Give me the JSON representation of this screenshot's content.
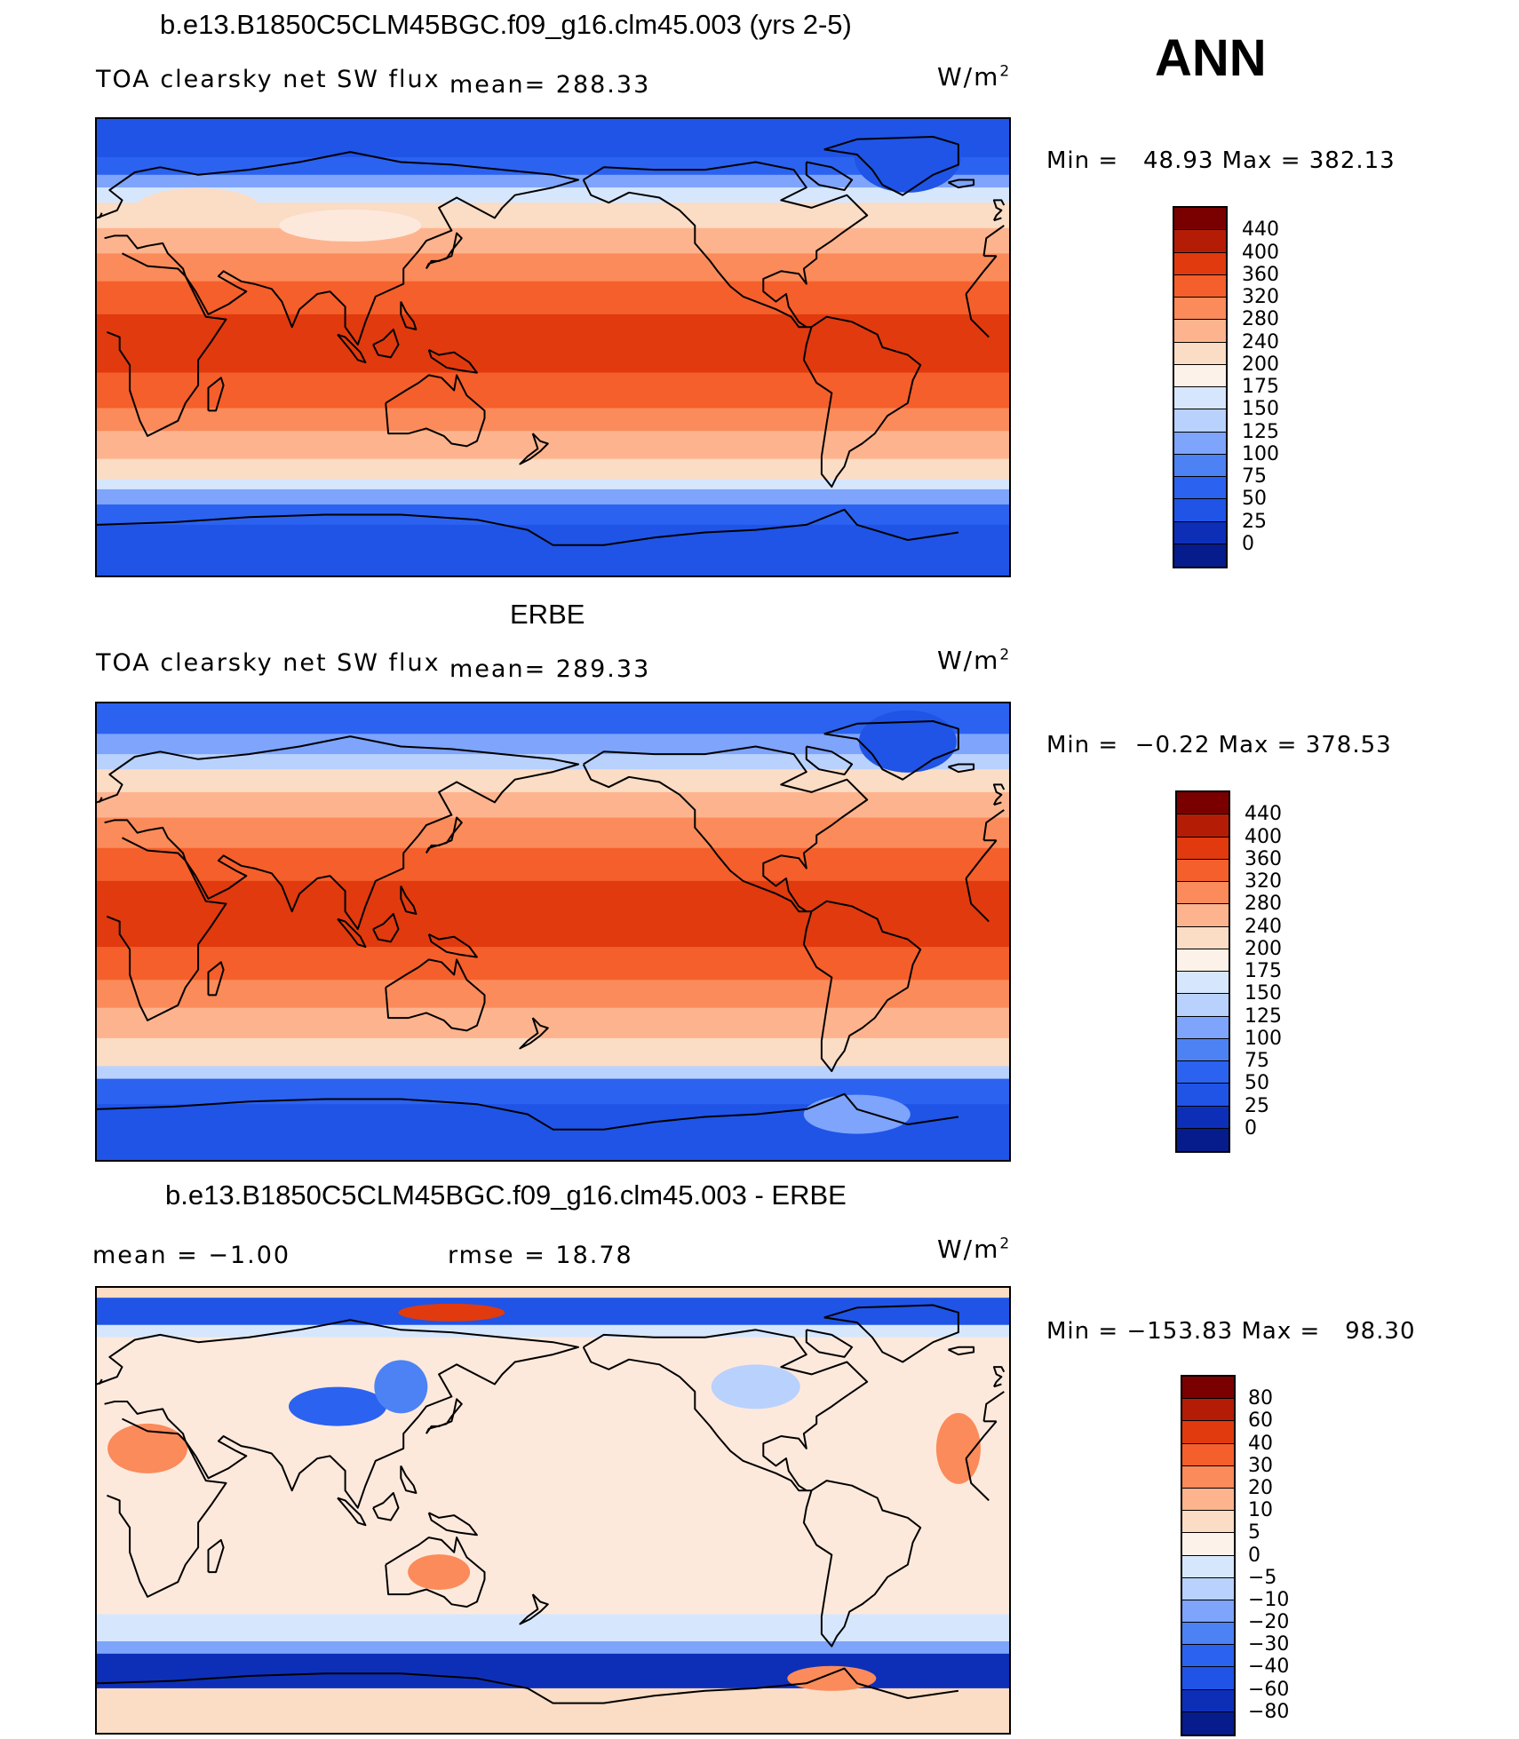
{
  "season": "ANN",
  "panels": [
    {
      "id": "model",
      "title": "b.e13.B1850C5CLM45BGC.f09_g16.clm45.003 (yrs 2-5)",
      "left_label": "TOA clearsky net SW flux",
      "mean_text": "mean= 288.33",
      "units": "W/m",
      "units_sup": "2",
      "minmax": "Min =   48.93 Max = 382.13",
      "cbar_labels": [
        "440",
        "400",
        "360",
        "320",
        "280",
        "240",
        "200",
        "175",
        "150",
        "125",
        "100",
        "75",
        "50",
        "25",
        "0"
      ],
      "bands": [
        {
          "lat": 90,
          "color": "#1f54e6"
        },
        {
          "lat": 75,
          "color": "#2b62f0"
        },
        {
          "lat": 68,
          "color": "#7ea4fb"
        },
        {
          "lat": 63,
          "color": "#d6e7fd"
        },
        {
          "lat": 57,
          "color": "#fbdcc4"
        },
        {
          "lat": 47,
          "color": "#fdb48e"
        },
        {
          "lat": 37,
          "color": "#fb8b5a"
        },
        {
          "lat": 26,
          "color": "#f55f2b"
        },
        {
          "lat": 13,
          "color": "#e13a0e"
        },
        {
          "lat": -10,
          "color": "#f55f2b"
        },
        {
          "lat": -24,
          "color": "#fb8b5a"
        },
        {
          "lat": -33,
          "color": "#fdb48e"
        },
        {
          "lat": -44,
          "color": "#fbdcc4"
        },
        {
          "lat": -52,
          "color": "#d6e7fd"
        },
        {
          "lat": -56,
          "color": "#7ea4fb"
        },
        {
          "lat": -62,
          "color": "#2b62f0"
        },
        {
          "lat": -70,
          "color": "#1f54e6"
        }
      ]
    },
    {
      "id": "obs",
      "title": "ERBE",
      "left_label": "TOA clearsky net SW flux",
      "mean_text": "mean= 289.33",
      "units": "W/m",
      "units_sup": "2",
      "minmax": "Min =  −0.22 Max = 378.53",
      "cbar_labels": [
        "440",
        "400",
        "360",
        "320",
        "280",
        "240",
        "200",
        "175",
        "150",
        "125",
        "100",
        "75",
        "50",
        "25",
        "0"
      ],
      "bands": [
        {
          "lat": 90,
          "color": "#2b62f0"
        },
        {
          "lat": 78,
          "color": "#7ea4fb"
        },
        {
          "lat": 70,
          "color": "#b9d1fd"
        },
        {
          "lat": 64,
          "color": "#fbdcc4"
        },
        {
          "lat": 55,
          "color": "#fdb48e"
        },
        {
          "lat": 45,
          "color": "#fb8b5a"
        },
        {
          "lat": 33,
          "color": "#f55f2b"
        },
        {
          "lat": 20,
          "color": "#e13a0e"
        },
        {
          "lat": -6,
          "color": "#f55f2b"
        },
        {
          "lat": -19,
          "color": "#fb8b5a"
        },
        {
          "lat": -30,
          "color": "#fdb48e"
        },
        {
          "lat": -42,
          "color": "#fbdcc4"
        },
        {
          "lat": -53,
          "color": "#b9d1fd"
        },
        {
          "lat": -58,
          "color": "#2b62f0"
        },
        {
          "lat": -68,
          "color": "#1f54e6"
        }
      ]
    },
    {
      "id": "diff",
      "title": "b.e13.B1850C5CLM45BGC.f09_g16.clm45.003 - ERBE",
      "left_label": "mean =   −1.00",
      "mean_text": "rmse =   18.78",
      "units": "W/m",
      "units_sup": "2",
      "minmax": "Min = −153.83 Max =   98.30",
      "cbar_labels": [
        "80",
        "60",
        "40",
        "30",
        "20",
        "10",
        "5",
        "0",
        "−5",
        "−10",
        "−20",
        "−30",
        "−40",
        "−60",
        "−80"
      ],
      "bands": [
        {
          "lat": 90,
          "color": "#fbdcc4"
        },
        {
          "lat": 86,
          "color": "#1f54e6"
        },
        {
          "lat": 75,
          "color": "#d6e7fd"
        },
        {
          "lat": 70,
          "color": "#fde9dc"
        },
        {
          "lat": -42,
          "color": "#d6e7fd"
        },
        {
          "lat": -53,
          "color": "#7ea4fb"
        },
        {
          "lat": -58,
          "color": "#0d2fb8"
        },
        {
          "lat": -72,
          "color": "#fbdcc4"
        }
      ]
    }
  ],
  "colorbar_colors": [
    "#7a0000",
    "#b51c06",
    "#e13a0e",
    "#f55f2b",
    "#fb8b5a",
    "#fdb48e",
    "#fbdcc4",
    "#fdf2ea",
    "#d6e7fd",
    "#b9d1fd",
    "#7ea4fb",
    "#4d82f5",
    "#2b62f0",
    "#1f54e6",
    "#0d2fb8",
    "#061c8c"
  ]
}
